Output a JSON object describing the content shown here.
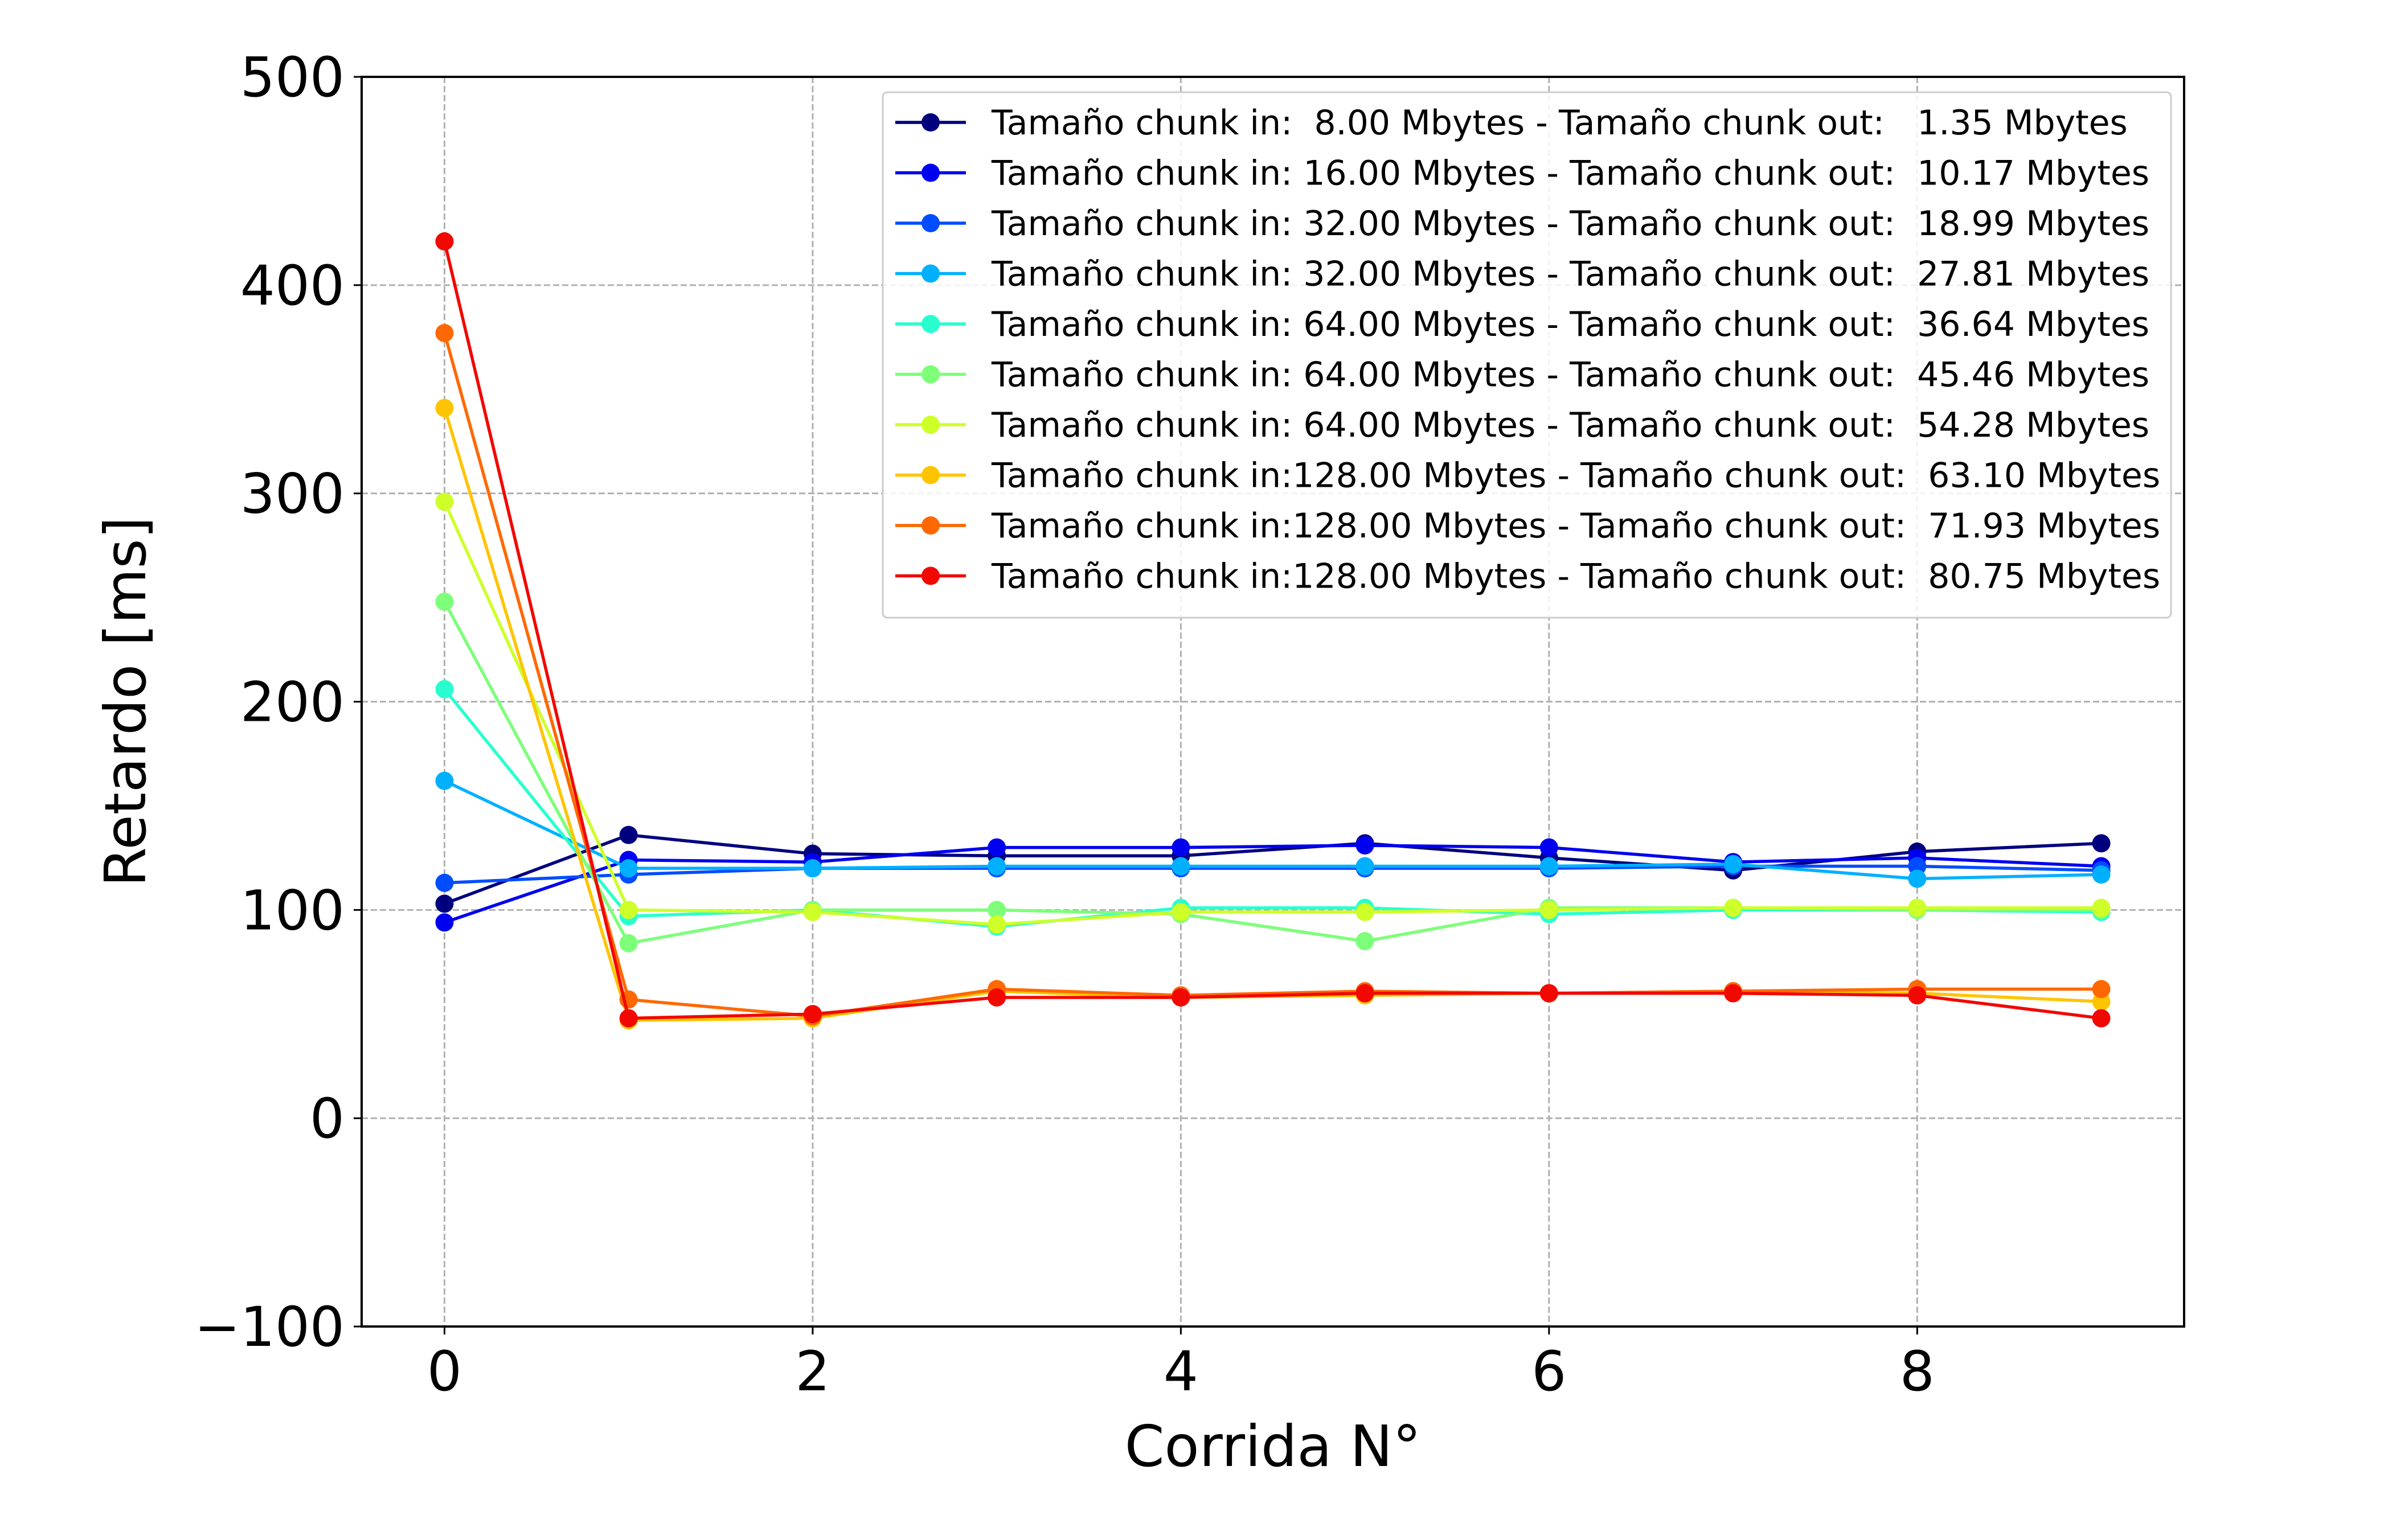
{
  "chart_data": {
    "type": "line",
    "title": "",
    "xlabel": "Corrida N°",
    "ylabel": "Retardo [ms]",
    "xlim": [
      -0.45,
      9.45
    ],
    "ylim": [
      -100,
      500
    ],
    "xticks": [
      0,
      2,
      4,
      6,
      8
    ],
    "xtick_labels": [
      "0",
      "2",
      "4",
      "6",
      "8"
    ],
    "yticks": [
      -100,
      0,
      100,
      200,
      300,
      400,
      500
    ],
    "ytick_labels": [
      "−100",
      "0",
      "100",
      "200",
      "300",
      "400",
      "500"
    ],
    "grid": true,
    "legend_position": "top-right",
    "x": [
      0,
      1,
      2,
      3,
      4,
      5,
      6,
      7,
      8,
      9
    ],
    "series": [
      {
        "name": "Tamaño chunk in:  8.00 Mbytes - Tamaño chunk out:   1.35 Mbytes",
        "color": "#00007f",
        "values": [
          103,
          136,
          127,
          126,
          126,
          132,
          125,
          119,
          128,
          132
        ]
      },
      {
        "name": "Tamaño chunk in: 16.00 Mbytes - Tamaño chunk out:  10.17 Mbytes",
        "color": "#0000f1",
        "values": [
          94,
          124,
          123,
          130,
          130,
          131,
          130,
          123,
          125,
          121
        ]
      },
      {
        "name": "Tamaño chunk in: 32.00 Mbytes - Tamaño chunk out:  18.99 Mbytes",
        "color": "#004cff",
        "values": [
          113,
          117,
          120,
          120,
          120,
          120,
          120,
          121,
          121,
          119
        ]
      },
      {
        "name": "Tamaño chunk in: 32.00 Mbytes - Tamaño chunk out:  27.81 Mbytes",
        "color": "#00b0ff",
        "values": [
          162,
          120,
          120,
          121,
          121,
          121,
          121,
          122,
          115,
          117
        ]
      },
      {
        "name": "Tamaño chunk in: 64.00 Mbytes - Tamaño chunk out:  36.64 Mbytes",
        "color": "#29ffce",
        "values": [
          206,
          97,
          100,
          92,
          101,
          101,
          98,
          100,
          100,
          99
        ]
      },
      {
        "name": "Tamaño chunk in: 64.00 Mbytes - Tamaño chunk out:  45.46 Mbytes",
        "color": "#7dff7a",
        "values": [
          248,
          84,
          100,
          100,
          98,
          85,
          101,
          101,
          100,
          100
        ]
      },
      {
        "name": "Tamaño chunk in: 64.00 Mbytes - Tamaño chunk out:  54.28 Mbytes",
        "color": "#ceff29",
        "values": [
          296,
          100,
          99,
          93,
          99,
          99,
          100,
          101,
          101,
          101
        ]
      },
      {
        "name": "Tamaño chunk in:128.00 Mbytes - Tamaño chunk out:  63.10 Mbytes",
        "color": "#ffc400",
        "values": [
          341,
          47,
          48,
          61,
          58,
          59,
          60,
          61,
          60,
          56
        ]
      },
      {
        "name": "Tamaño chunk in:128.00 Mbytes - Tamaño chunk out:  71.93 Mbytes",
        "color": "#ff6800",
        "values": [
          377,
          57,
          49,
          62,
          59,
          61,
          60,
          61,
          62,
          62
        ]
      },
      {
        "name": "Tamaño chunk in:128.00 Mbytes - Tamaño chunk out:  80.75 Mbytes",
        "color": "#f10800",
        "values": [
          421,
          48,
          50,
          58,
          58,
          60,
          60,
          60,
          59,
          48
        ]
      }
    ]
  }
}
